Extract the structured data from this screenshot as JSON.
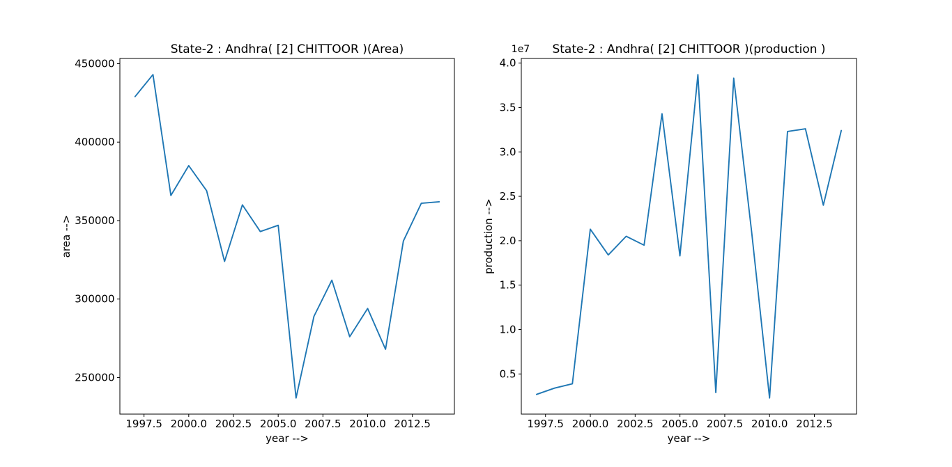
{
  "figure": {
    "background": "#ffffff",
    "line_color": "#1f77b4"
  },
  "chart_data": [
    {
      "type": "line",
      "title": "State-2 : Andhra( [2] CHITTOOR )(Area)",
      "xlabel": "year -->",
      "ylabel": "area -->",
      "offset_text": "",
      "x": [
        1997,
        1998,
        1999,
        2000,
        2001,
        2002,
        2003,
        2004,
        2005,
        2006,
        2007,
        2008,
        2009,
        2010,
        2011,
        2012,
        2013,
        2014
      ],
      "y": [
        429000,
        443000,
        366000,
        385000,
        369000,
        324000,
        360000,
        343000,
        347000,
        237000,
        289000,
        312000,
        276000,
        294000,
        268000,
        337000,
        361000,
        362000
      ],
      "xlim": [
        1996.15,
        2014.85
      ],
      "ylim": [
        226700,
        453300
      ],
      "xticks": [
        1997.5,
        2000.0,
        2002.5,
        2005.0,
        2007.5,
        2010.0,
        2012.5
      ],
      "xtick_labels": [
        "1997.5",
        "2000.0",
        "2002.5",
        "2005.0",
        "2007.5",
        "2010.0",
        "2012.5"
      ],
      "yticks": [
        250000,
        300000,
        350000,
        400000,
        450000
      ],
      "ytick_labels": [
        "250000",
        "300000",
        "350000",
        "400000",
        "450000"
      ],
      "grid": false,
      "legend": null
    },
    {
      "type": "line",
      "title": "State-2 : Andhra( [2] CHITTOOR )(production )",
      "xlabel": "year -->",
      "ylabel": "production -->",
      "offset_text": "1e7",
      "x": [
        1997,
        1998,
        1999,
        2000,
        2001,
        2002,
        2003,
        2004,
        2005,
        2006,
        2007,
        2008,
        2009,
        2010,
        2011,
        2012,
        2013,
        2014
      ],
      "y": [
        2700000,
        3400000,
        3900000,
        21300000,
        18400000,
        20500000,
        19500000,
        34300000,
        18300000,
        38700000,
        2900000,
        38300000,
        21000000,
        2300000,
        32300000,
        32600000,
        24000000,
        32400000
      ],
      "xlim": [
        1996.15,
        2014.85
      ],
      "ylim": [
        480000,
        40520000
      ],
      "xticks": [
        1997.5,
        2000.0,
        2002.5,
        2005.0,
        2007.5,
        2010.0,
        2012.5
      ],
      "xtick_labels": [
        "1997.5",
        "2000.0",
        "2002.5",
        "2005.0",
        "2007.5",
        "2010.0",
        "2012.5"
      ],
      "yticks": [
        5000000,
        10000000,
        15000000,
        20000000,
        25000000,
        30000000,
        35000000,
        40000000
      ],
      "ytick_labels": [
        "0.5",
        "1.0",
        "1.5",
        "2.0",
        "2.5",
        "3.0",
        "3.5",
        "4.0"
      ],
      "grid": false,
      "legend": null
    }
  ]
}
